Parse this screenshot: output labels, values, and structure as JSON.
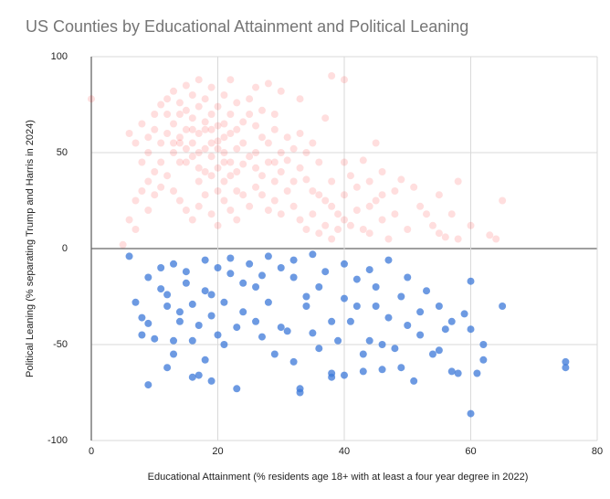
{
  "chart_data": {
    "type": "scatter",
    "title": "US Counties by Educational Attainment and Political Leaning",
    "x_label": "Educational Attainment (% residents age 18+ with at least a four year degree in 2022)",
    "y_label": "Political Leaning (% separating Trump and Harris in 2024)",
    "xlim": [
      0,
      80
    ],
    "xticks": [
      0,
      20,
      40,
      60,
      80
    ],
    "ylim": [
      -100,
      100
    ],
    "yticks": [
      -100,
      -50,
      0,
      50,
      100
    ],
    "grid": true,
    "series": [
      {
        "color": "#ff0000",
        "x": [
          12,
          13,
          14,
          15,
          16,
          17,
          18,
          19,
          20,
          21,
          22,
          23,
          14,
          15,
          16,
          17,
          18,
          19,
          20,
          21,
          22,
          13,
          14,
          15,
          16,
          17,
          18,
          19,
          20,
          21,
          22,
          23,
          24,
          25,
          26,
          27,
          28,
          29,
          30,
          11,
          10,
          9,
          10,
          11,
          12,
          13,
          15,
          17,
          19,
          21,
          23,
          25,
          26,
          27,
          28,
          29,
          30,
          31,
          32,
          33,
          34,
          35,
          36,
          37,
          38,
          39,
          40,
          41,
          42,
          43,
          44,
          45,
          46,
          47,
          48,
          50,
          52,
          54,
          55,
          56,
          58,
          57,
          55,
          51,
          48,
          46,
          44,
          42,
          40,
          38,
          36,
          34,
          33,
          31,
          29,
          27,
          25,
          24,
          23,
          22,
          20,
          18,
          16,
          14,
          12,
          11,
          10,
          9,
          8,
          7,
          8,
          9,
          7,
          8,
          6,
          6,
          7,
          5,
          9,
          10,
          11,
          12,
          13,
          14,
          15,
          16,
          17,
          18,
          19,
          20,
          21,
          22,
          23,
          24,
          25,
          26,
          27,
          28,
          29,
          30,
          31,
          32,
          33,
          34,
          35,
          36,
          37,
          38,
          39,
          40,
          41,
          43,
          45,
          44,
          46,
          49,
          53,
          35,
          37,
          38,
          40,
          33,
          30,
          28,
          26,
          22,
          24,
          21,
          19,
          17,
          15,
          13,
          18,
          20,
          16,
          14,
          19,
          21,
          17,
          20,
          23,
          26,
          29,
          32,
          0,
          63,
          64,
          60,
          58,
          65
        ],
        "values": [
          60,
          65,
          58,
          62,
          55,
          60,
          52,
          48,
          56,
          50,
          45,
          52,
          70,
          72,
          68,
          74,
          66,
          62,
          64,
          58,
          60,
          50,
          45,
          52,
          48,
          42,
          40,
          38,
          42,
          35,
          38,
          40,
          44,
          48,
          42,
          38,
          45,
          35,
          40,
          55,
          62,
          58,
          70,
          75,
          78,
          82,
          85,
          88,
          84,
          80,
          76,
          70,
          64,
          58,
          55,
          62,
          50,
          46,
          52,
          42,
          36,
          30,
          28,
          25,
          22,
          18,
          15,
          12,
          20,
          10,
          8,
          25,
          15,
          5,
          18,
          10,
          22,
          12,
          8,
          6,
          5,
          18,
          28,
          32,
          30,
          40,
          35,
          32,
          28,
          35,
          45,
          50,
          60,
          58,
          70,
          72,
          78,
          66,
          62,
          70,
          74,
          78,
          80,
          76,
          70,
          45,
          40,
          35,
          30,
          25,
          45,
          50,
          55,
          65,
          60,
          15,
          10,
          2,
          20,
          28,
          32,
          38,
          30,
          25,
          20,
          15,
          22,
          28,
          18,
          12,
          25,
          20,
          15,
          28,
          22,
          32,
          28,
          20,
          25,
          18,
          30,
          22,
          15,
          10,
          18,
          8,
          12,
          5,
          10,
          45,
          38,
          46,
          55,
          22,
          28,
          36,
          18,
          55,
          68,
          90,
          88,
          78,
          82,
          86,
          84,
          88,
          55,
          45,
          55,
          50,
          45,
          55,
          62,
          52,
          62,
          55,
          70,
          65,
          35,
          30,
          30,
          50,
          45,
          35,
          78,
          7,
          5,
          12,
          35,
          25
        ]
      },
      {
        "color": "#3c78d8",
        "x": [
          9,
          12,
          13,
          16,
          17,
          19,
          23,
          33,
          33,
          32,
          38,
          38,
          40,
          43,
          46,
          49,
          51,
          57,
          58,
          61,
          60,
          75,
          75,
          62,
          62,
          65,
          60,
          60,
          59,
          55,
          53,
          50,
          47,
          45,
          44,
          42,
          40,
          38,
          36,
          35,
          34,
          32,
          30,
          28,
          27,
          26,
          24,
          22,
          21,
          20,
          19,
          18,
          17,
          16,
          15,
          14,
          13,
          12,
          11,
          10,
          9,
          8,
          7,
          8,
          9,
          11,
          13,
          15,
          18,
          20,
          22,
          25,
          28,
          30,
          32,
          35,
          37,
          40,
          42,
          44,
          47,
          49,
          52,
          55,
          56,
          54,
          48,
          46,
          43,
          39,
          36,
          31,
          29,
          26,
          24,
          23,
          21,
          18,
          16,
          14,
          12,
          57,
          50,
          52,
          41,
          34,
          27,
          19,
          6,
          45
        ],
        "values": [
          -71,
          -62,
          -55,
          -67,
          -66,
          -69,
          -73,
          -73,
          -75,
          -59,
          -65,
          -67,
          -66,
          -64,
          -63,
          -62,
          -69,
          -64,
          -65,
          -65,
          -86,
          -59,
          -62,
          -58,
          -50,
          -30,
          -42,
          -17,
          -34,
          -30,
          -22,
          -40,
          -36,
          -20,
          -48,
          -30,
          -26,
          -38,
          -20,
          -44,
          -30,
          -15,
          -41,
          -28,
          -46,
          -20,
          -33,
          -13,
          -28,
          -45,
          -35,
          -22,
          -40,
          -29,
          -18,
          -38,
          -48,
          -30,
          -21,
          -47,
          -39,
          -45,
          -28,
          -36,
          -15,
          -10,
          -8,
          -12,
          -6,
          -10,
          -5,
          -8,
          -4,
          -10,
          -6,
          -3,
          -12,
          -8,
          -16,
          -11,
          -6,
          -25,
          -45,
          -53,
          -42,
          -55,
          -52,
          -50,
          -55,
          -48,
          -52,
          -43,
          -55,
          -38,
          -18,
          -41,
          -50,
          -58,
          -48,
          -33,
          -24,
          -38,
          -15,
          -33,
          -38,
          -25,
          -14,
          -24,
          -4,
          -30
        ]
      }
    ]
  }
}
